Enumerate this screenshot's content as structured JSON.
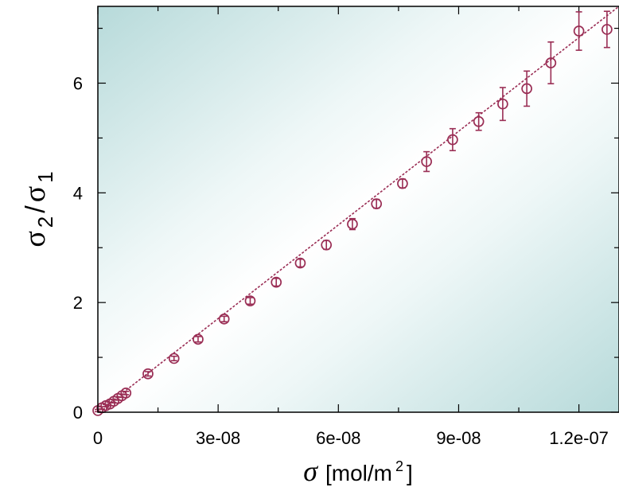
{
  "chart_data": {
    "type": "scatter",
    "x_unit_label": "[mol/m",
    "x_unit_exp": "2",
    "x_unit_close": "]",
    "x_symbol": "σ",
    "y_symbol_num": "σ",
    "y_sub_num": "2",
    "y_slash": "/",
    "y_symbol_den": "σ",
    "y_sub_den": "1",
    "xlim": [
      0,
      1.3e-07
    ],
    "ylim": [
      0,
      7.4
    ],
    "x_ticks": [
      {
        "value": 0,
        "label": "0"
      },
      {
        "value": 3e-08,
        "label": "3e-08"
      },
      {
        "value": 6e-08,
        "label": "6e-08"
      },
      {
        "value": 9e-08,
        "label": "9e-08"
      },
      {
        "value": 1.2e-07,
        "label": "1.2e-07"
      }
    ],
    "y_ticks": [
      {
        "value": 0,
        "label": "0"
      },
      {
        "value": 2,
        "label": "2"
      },
      {
        "value": 4,
        "label": "4"
      },
      {
        "value": 6,
        "label": "6"
      }
    ],
    "fit_line": {
      "x": [
        0,
        1.3e-07
      ],
      "y": [
        0,
        7.4
      ]
    },
    "series": [
      {
        "color": "#9a2e55",
        "marker": "open-circle",
        "points": [
          {
            "x": 0.0,
            "y": 0.03,
            "err": 0.02
          },
          {
            "x": 1e-09,
            "y": 0.08,
            "err": 0.02
          },
          {
            "x": 2e-09,
            "y": 0.12,
            "err": 0.02
          },
          {
            "x": 3e-09,
            "y": 0.15,
            "err": 0.03
          },
          {
            "x": 4e-09,
            "y": 0.2,
            "err": 0.03
          },
          {
            "x": 5e-09,
            "y": 0.25,
            "err": 0.03
          },
          {
            "x": 6e-09,
            "y": 0.3,
            "err": 0.03
          },
          {
            "x": 7e-09,
            "y": 0.35,
            "err": 0.03
          },
          {
            "x": 1.25e-08,
            "y": 0.7,
            "err": 0.04
          },
          {
            "x": 1.9e-08,
            "y": 0.98,
            "err": 0.04
          },
          {
            "x": 2.5e-08,
            "y": 1.33,
            "err": 0.05
          },
          {
            "x": 3.15e-08,
            "y": 1.7,
            "err": 0.05
          },
          {
            "x": 3.8e-08,
            "y": 2.03,
            "err": 0.06
          },
          {
            "x": 4.45e-08,
            "y": 2.37,
            "err": 0.07
          },
          {
            "x": 5.05e-08,
            "y": 2.72,
            "err": 0.07
          },
          {
            "x": 5.7e-08,
            "y": 3.05,
            "err": 0.08
          },
          {
            "x": 6.35e-08,
            "y": 3.43,
            "err": 0.1
          },
          {
            "x": 6.95e-08,
            "y": 3.8,
            "err": 0.08
          },
          {
            "x": 7.6e-08,
            "y": 4.17,
            "err": 0.08
          },
          {
            "x": 8.2e-08,
            "y": 4.57,
            "err": 0.18
          },
          {
            "x": 8.85e-08,
            "y": 4.97,
            "err": 0.2
          },
          {
            "x": 9.5e-08,
            "y": 5.3,
            "err": 0.16
          },
          {
            "x": 1.01e-07,
            "y": 5.62,
            "err": 0.3
          },
          {
            "x": 1.07e-07,
            "y": 5.9,
            "err": 0.32
          },
          {
            "x": 1.13e-07,
            "y": 6.37,
            "err": 0.38
          },
          {
            "x": 1.2e-07,
            "y": 6.95,
            "err": 0.35
          },
          {
            "x": 1.27e-07,
            "y": 6.98,
            "err": 0.33
          }
        ]
      }
    ]
  }
}
